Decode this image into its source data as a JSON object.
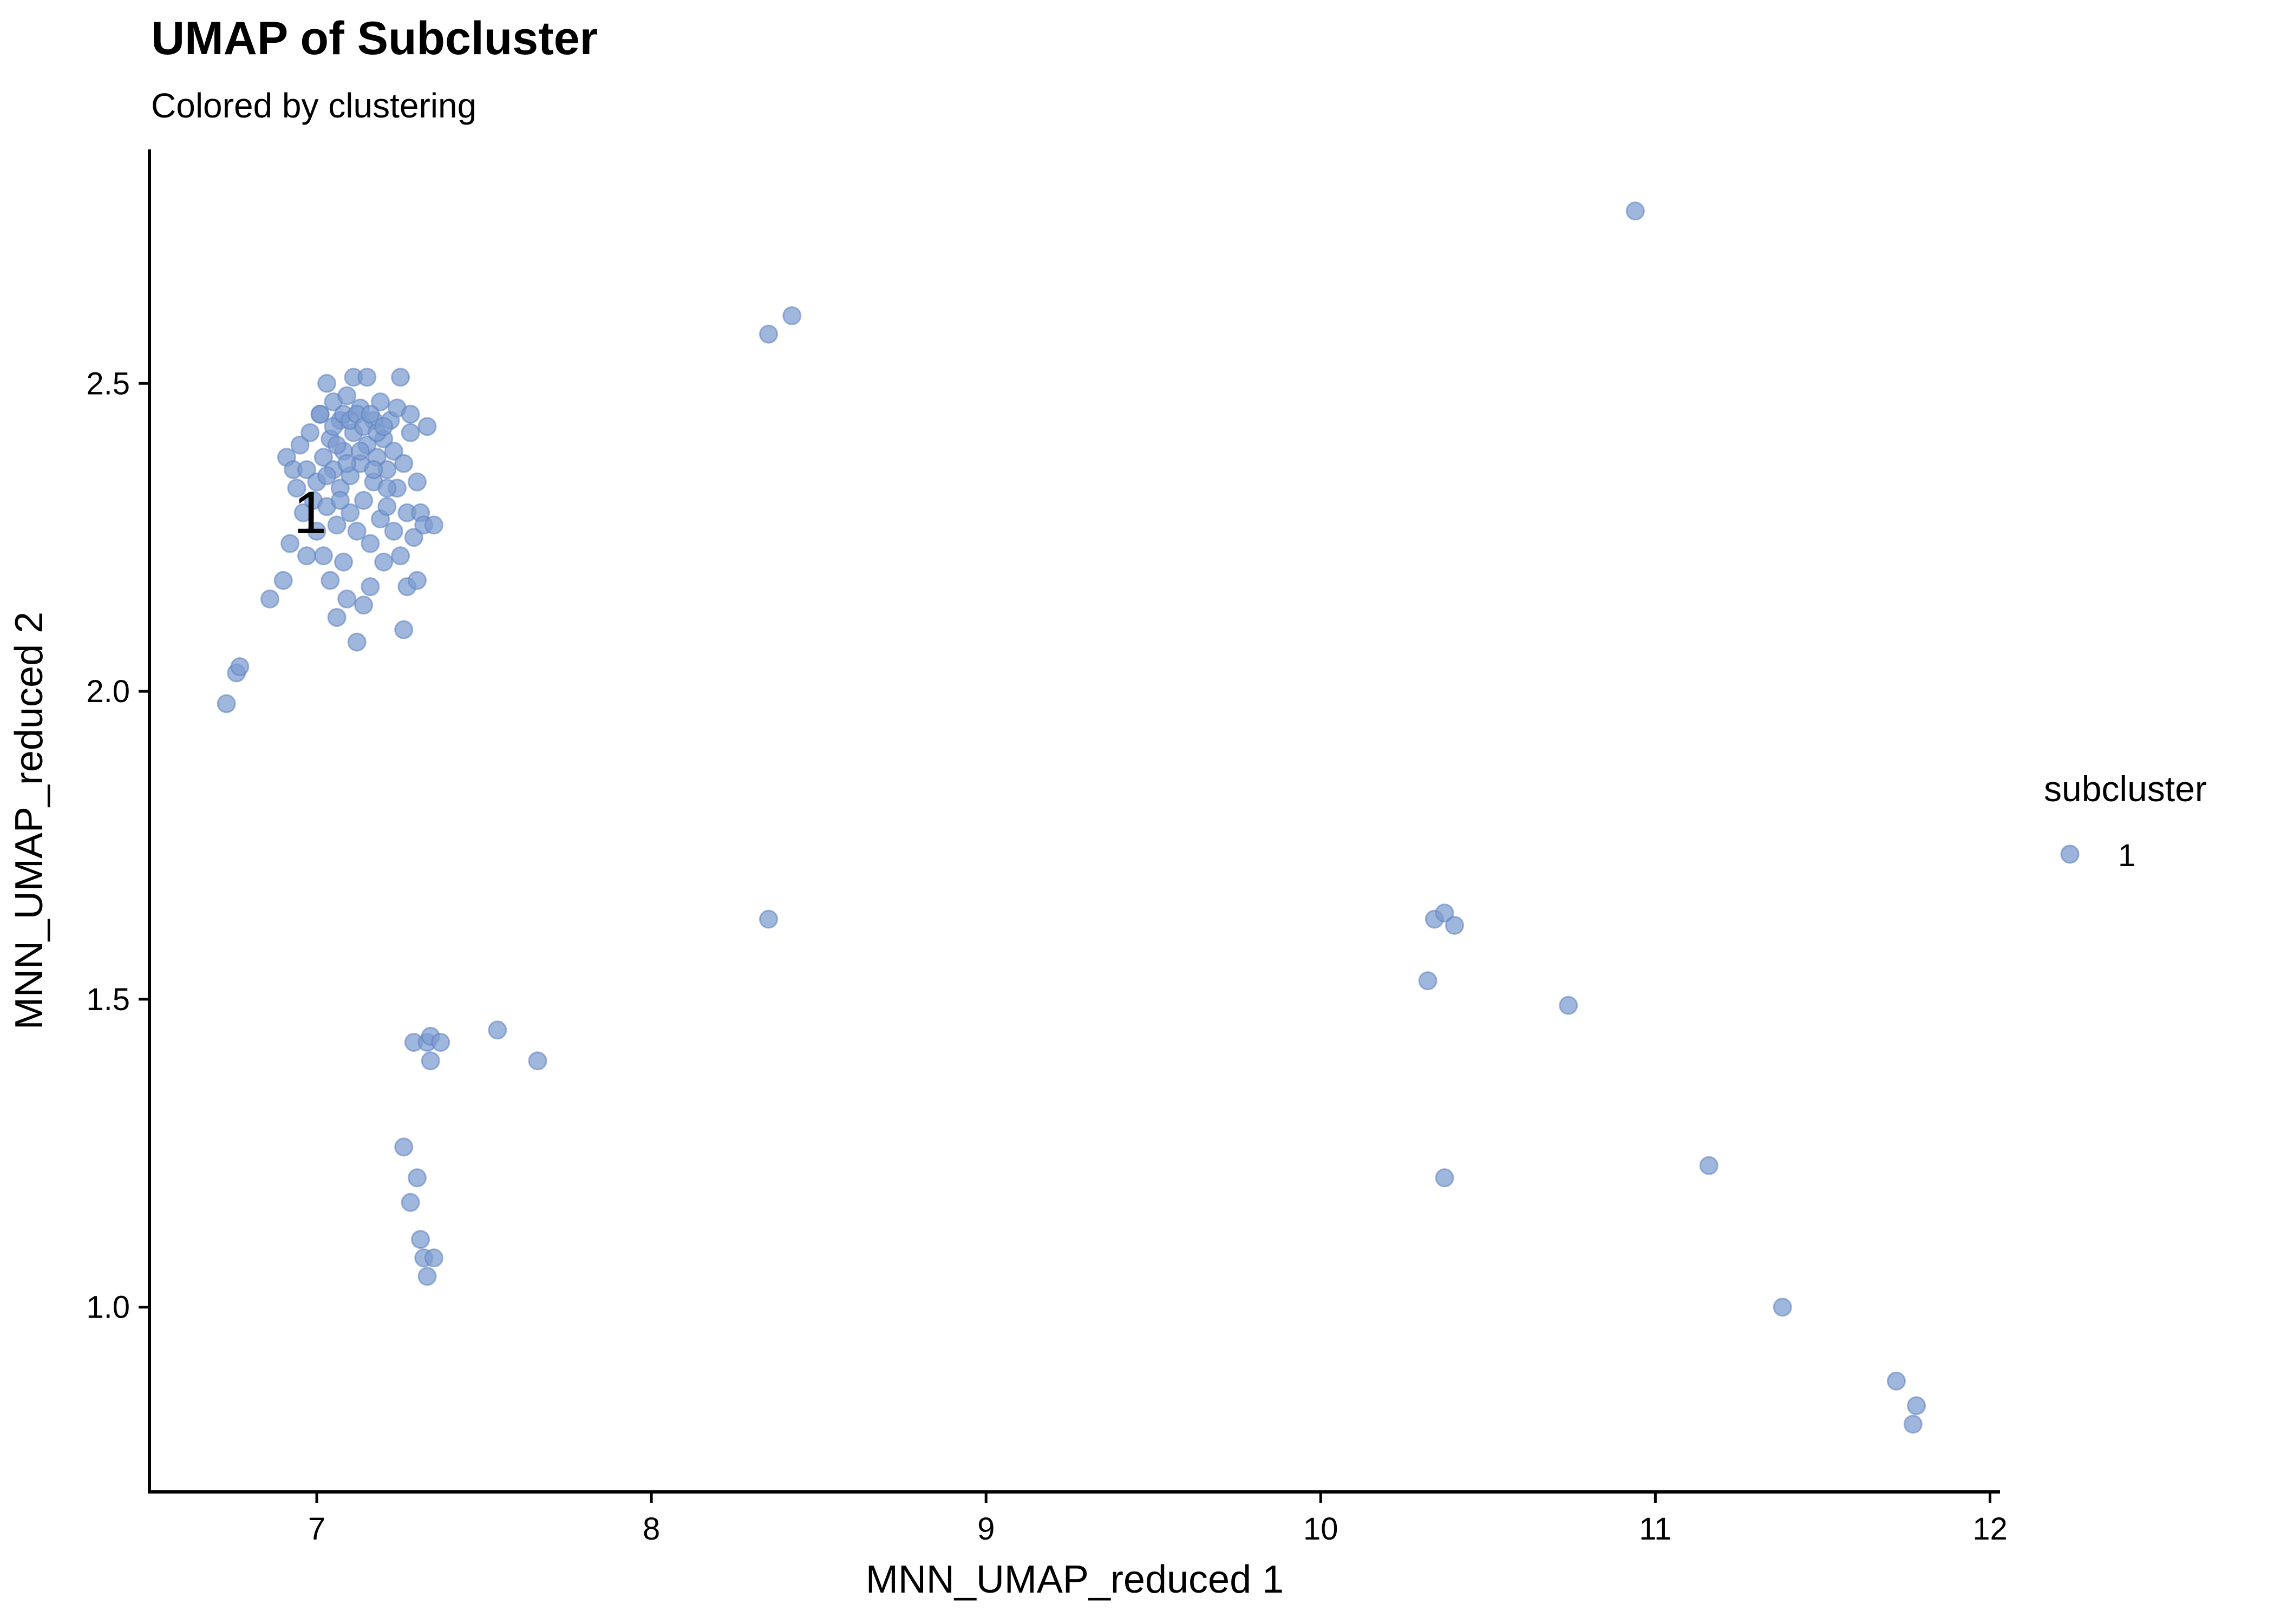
{
  "chart_data": {
    "type": "scatter",
    "title": "UMAP of Subcluster",
    "subtitle": "Colored by clustering",
    "xlabel": "MNN_UMAP_reduced 1",
    "ylabel": "MNN_UMAP_reduced 2",
    "xlim": [
      6.5,
      12.03
    ],
    "ylim": [
      0.7,
      2.88
    ],
    "xticks": [
      7,
      8,
      9,
      10,
      11,
      12
    ],
    "yticks": [
      1.0,
      1.5,
      2.0,
      2.5
    ],
    "xtick_labels": [
      "7",
      "8",
      "9",
      "10",
      "11",
      "12"
    ],
    "ytick_labels": [
      "1.0",
      "1.5",
      "2.0",
      "2.5"
    ],
    "grid": false,
    "legend": {
      "title": "subcluster",
      "position": "right",
      "entries": [
        {
          "label": "1",
          "color": "#7b9bd0"
        }
      ]
    },
    "cluster_labels": [
      {
        "text": "1",
        "x": 6.98,
        "y": 2.29
      }
    ],
    "series": [
      {
        "name": "1",
        "color": "#7b9bd0",
        "opacity": 0.72,
        "points": [
          [
            10.94,
            2.78
          ],
          [
            8.35,
            2.58
          ],
          [
            8.42,
            2.61
          ],
          [
            6.73,
            1.98
          ],
          [
            6.76,
            2.03
          ],
          [
            6.77,
            2.04
          ],
          [
            6.86,
            2.15
          ],
          [
            6.9,
            2.18
          ],
          [
            8.35,
            1.63
          ],
          [
            10.32,
            1.53
          ],
          [
            10.34,
            1.63
          ],
          [
            10.37,
            1.64
          ],
          [
            10.4,
            1.62
          ],
          [
            10.74,
            1.49
          ],
          [
            7.29,
            1.43
          ],
          [
            7.33,
            1.43
          ],
          [
            7.34,
            1.44
          ],
          [
            7.37,
            1.43
          ],
          [
            7.34,
            1.4
          ],
          [
            7.54,
            1.45
          ],
          [
            7.66,
            1.4
          ],
          [
            7.26,
            1.26
          ],
          [
            7.3,
            1.21
          ],
          [
            7.28,
            1.17
          ],
          [
            7.31,
            1.11
          ],
          [
            7.32,
            1.08
          ],
          [
            7.35,
            1.08
          ],
          [
            7.33,
            1.05
          ],
          [
            10.37,
            1.21
          ],
          [
            11.16,
            1.23
          ],
          [
            11.38,
            1.0
          ],
          [
            11.72,
            0.88
          ],
          [
            11.78,
            0.84
          ],
          [
            11.77,
            0.81
          ],
          [
            6.91,
            2.38
          ],
          [
            6.93,
            2.36
          ],
          [
            6.94,
            2.33
          ],
          [
            6.95,
            2.4
          ],
          [
            6.96,
            2.29
          ],
          [
            6.97,
            2.36
          ],
          [
            6.98,
            2.42
          ],
          [
            6.99,
            2.31
          ],
          [
            7.0,
            2.34
          ],
          [
            7.0,
            2.26
          ],
          [
            7.01,
            2.45
          ],
          [
            7.02,
            2.38
          ],
          [
            7.02,
            2.22
          ],
          [
            7.03,
            2.5
          ],
          [
            7.03,
            2.3
          ],
          [
            7.04,
            2.41
          ],
          [
            7.04,
            2.18
          ],
          [
            7.05,
            2.36
          ],
          [
            7.05,
            2.47
          ],
          [
            7.06,
            2.27
          ],
          [
            7.06,
            2.12
          ],
          [
            7.07,
            2.33
          ],
          [
            7.07,
            2.44
          ],
          [
            7.08,
            2.39
          ],
          [
            7.08,
            2.21
          ],
          [
            7.09,
            2.48
          ],
          [
            7.09,
            2.15
          ],
          [
            7.1,
            2.35
          ],
          [
            7.1,
            2.29
          ],
          [
            7.11,
            2.42
          ],
          [
            7.11,
            2.51
          ],
          [
            7.12,
            2.26
          ],
          [
            7.12,
            2.08
          ],
          [
            7.13,
            2.37
          ],
          [
            7.13,
            2.46
          ],
          [
            7.14,
            2.31
          ],
          [
            7.14,
            2.14
          ],
          [
            7.15,
            2.4
          ],
          [
            7.15,
            2.51
          ],
          [
            7.16,
            2.24
          ],
          [
            7.16,
            2.17
          ],
          [
            7.17,
            2.44
          ],
          [
            7.17,
            2.34
          ],
          [
            7.18,
            2.38
          ],
          [
            7.19,
            2.28
          ],
          [
            7.19,
            2.47
          ],
          [
            7.2,
            2.21
          ],
          [
            7.2,
            2.41
          ],
          [
            7.21,
            2.36
          ],
          [
            7.21,
            2.3
          ],
          [
            7.22,
            2.44
          ],
          [
            7.23,
            2.26
          ],
          [
            7.23,
            2.39
          ],
          [
            7.24,
            2.33
          ],
          [
            7.24,
            2.46
          ],
          [
            7.25,
            2.22
          ],
          [
            7.25,
            2.51
          ],
          [
            7.26,
            2.37
          ],
          [
            7.26,
            2.1
          ],
          [
            7.27,
            2.29
          ],
          [
            7.27,
            2.17
          ],
          [
            7.28,
            2.42
          ],
          [
            7.28,
            2.45
          ],
          [
            7.29,
            2.25
          ],
          [
            7.3,
            2.34
          ],
          [
            7.3,
            2.18
          ],
          [
            7.31,
            2.29
          ],
          [
            7.32,
            2.27
          ],
          [
            7.33,
            2.43
          ],
          [
            7.35,
            2.27
          ],
          [
            6.92,
            2.24
          ],
          [
            6.97,
            2.22
          ],
          [
            7.01,
            2.45
          ],
          [
            7.05,
            2.43
          ],
          [
            7.08,
            2.45
          ],
          [
            7.1,
            2.44
          ],
          [
            7.12,
            2.45
          ],
          [
            7.14,
            2.43
          ],
          [
            7.16,
            2.45
          ],
          [
            7.18,
            2.42
          ],
          [
            7.2,
            2.43
          ],
          [
            7.06,
            2.4
          ],
          [
            7.09,
            2.37
          ],
          [
            7.13,
            2.39
          ],
          [
            7.17,
            2.36
          ],
          [
            7.21,
            2.33
          ],
          [
            7.03,
            2.35
          ],
          [
            7.07,
            2.31
          ]
        ]
      }
    ]
  }
}
